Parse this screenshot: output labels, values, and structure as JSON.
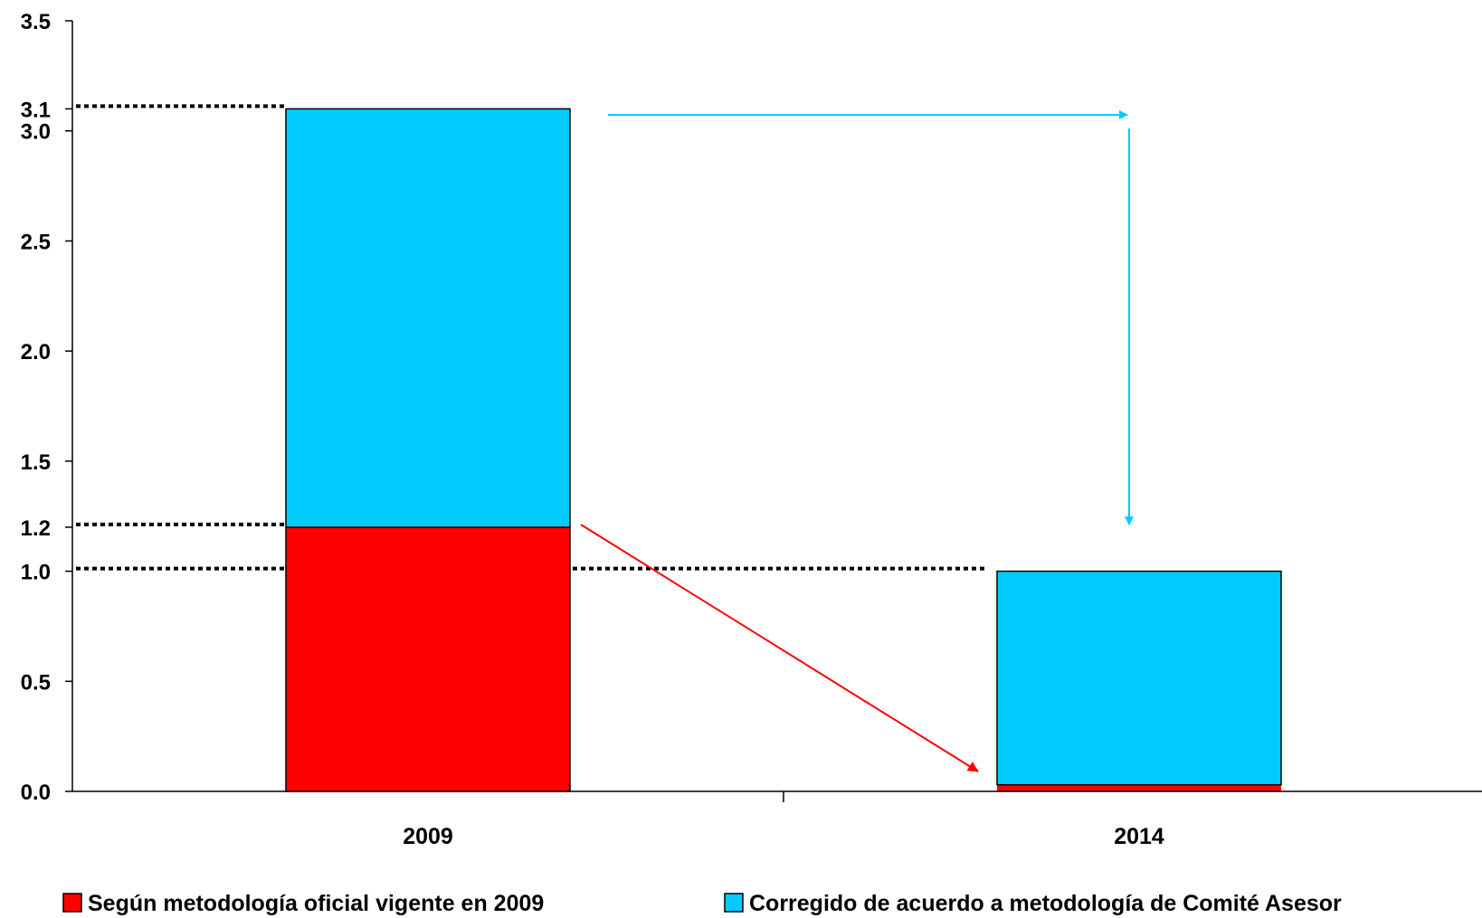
{
  "chart_data": {
    "type": "bar",
    "stacked": true,
    "categories": [
      "2009",
      "2014"
    ],
    "series": [
      {
        "name": "Según metodología oficial vigente en 2009",
        "color": "#ff0000",
        "values": [
          1.2,
          0.03
        ]
      },
      {
        "name": "Corregido de acuerdo a metodología de Comité Asesor",
        "color": "#00ccff",
        "values": [
          1.9,
          0.97
        ]
      }
    ],
    "ylim": [
      0,
      3.5
    ],
    "yticks": [
      "0.0",
      "0.5",
      "1.0",
      "1.2",
      "1.5",
      "2.0",
      "2.5",
      "3.0",
      "3.1",
      "3.5"
    ],
    "reference_lines": [
      3.1,
      1.2,
      1.0
    ],
    "legend_position": "bottom",
    "grid": false
  }
}
